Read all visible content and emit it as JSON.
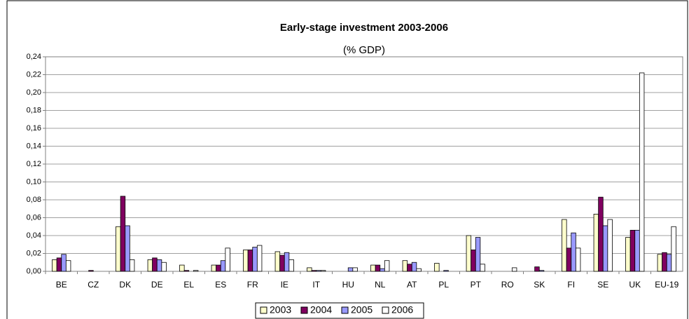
{
  "chart_data": {
    "type": "bar",
    "title": "Early-stage investment 2003-2006",
    "subtitle": "(% GDP)",
    "categories": [
      "BE",
      "CZ",
      "DK",
      "DE",
      "EL",
      "ES",
      "FR",
      "IE",
      "IT",
      "HU",
      "NL",
      "AT",
      "PL",
      "PT",
      "RO",
      "SK",
      "FI",
      "SE",
      "UK",
      "EU-19"
    ],
    "series": [
      {
        "name": "2003",
        "color": "#ffffcc",
        "values": [
          0.013,
          0,
          0.05,
          0.013,
          0.007,
          0.007,
          0.024,
          0.022,
          0.004,
          0,
          0.007,
          0.012,
          0.009,
          0.04,
          0,
          0,
          0.058,
          0.064,
          0.038,
          0.019
        ]
      },
      {
        "name": "2004",
        "color": "#800060",
        "values": [
          0.015,
          0.001,
          0.084,
          0.015,
          0.001,
          0.007,
          0.024,
          0.018,
          0.001,
          0,
          0.007,
          0.008,
          0,
          0.024,
          0,
          0.005,
          0.026,
          0.083,
          0.046,
          0.021
        ]
      },
      {
        "name": "2005",
        "color": "#9999ff",
        "values": [
          0.019,
          0,
          0.051,
          0.013,
          0,
          0.012,
          0.027,
          0.021,
          0.001,
          0.004,
          0.003,
          0.01,
          0.001,
          0.038,
          0,
          0.001,
          0.043,
          0.051,
          0.046,
          0.019
        ]
      },
      {
        "name": "2006",
        "color": "#ffffff",
        "values": [
          0.012,
          0,
          0.013,
          0.01,
          0.001,
          0.026,
          0.029,
          0.013,
          0.001,
          0.004,
          0.012,
          0.003,
          0,
          0.008,
          0.004,
          0,
          0.026,
          0.058,
          0.222,
          0.05
        ]
      }
    ],
    "ylim": [
      0,
      0.24
    ],
    "yticks": [
      {
        "value": 0,
        "label": "0,00"
      },
      {
        "value": 0.02,
        "label": "0,02"
      },
      {
        "value": 0.04,
        "label": "0,04"
      },
      {
        "value": 0.06,
        "label": "0,06"
      },
      {
        "value": 0.08,
        "label": "0,08"
      },
      {
        "value": 0.1,
        "label": "0,10"
      },
      {
        "value": 0.12,
        "label": "0,12"
      },
      {
        "value": 0.14,
        "label": "0,14"
      },
      {
        "value": 0.16,
        "label": "0,16"
      },
      {
        "value": 0.18,
        "label": "0,18"
      },
      {
        "value": 0.2,
        "label": "0,20"
      },
      {
        "value": 0.22,
        "label": "0,22"
      },
      {
        "value": 0.24,
        "label": "0,24"
      }
    ],
    "grid": true
  }
}
